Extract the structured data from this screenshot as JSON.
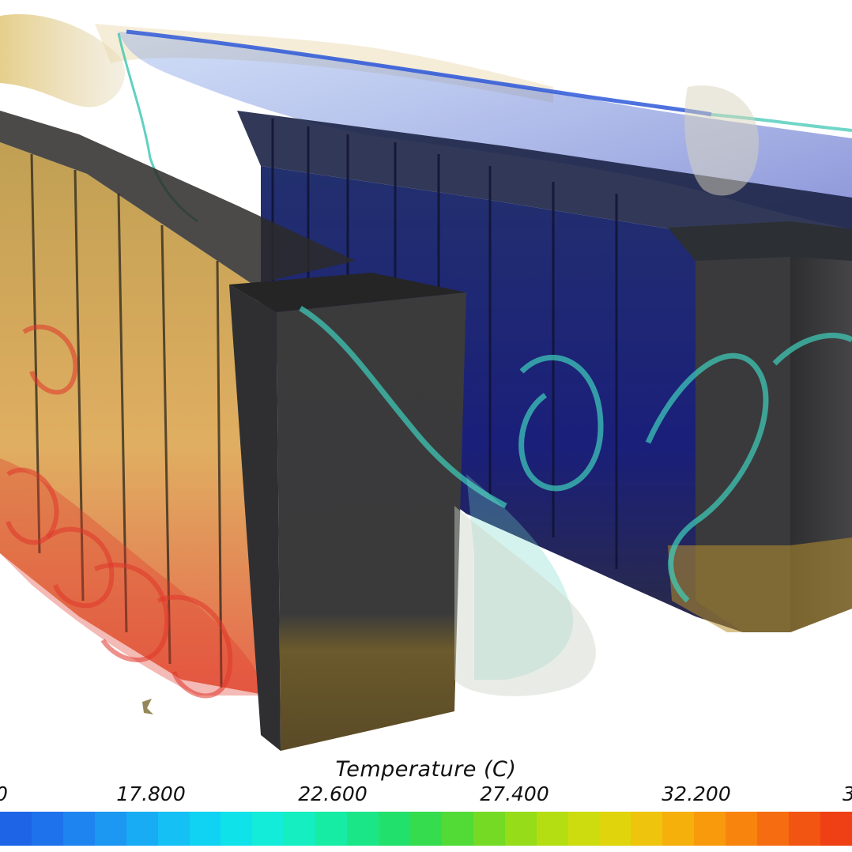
{
  "visualization": {
    "subject": "server-racks-temperature-isosurfaces",
    "colormap_name": "rainbow",
    "isosurface_colors": [
      "#d8b13a",
      "#e04630",
      "#3bc9b5",
      "#3450c9",
      "#cfd5c8"
    ],
    "rack_color": "#3a3a3c"
  },
  "legend": {
    "title": "Temperature (C)",
    "ticks": [
      {
        "label": "0",
        "clip": "partial-left"
      },
      {
        "label": "17.800"
      },
      {
        "label": "22.600"
      },
      {
        "label": "27.400"
      },
      {
        "label": "32.200"
      },
      {
        "label": "3",
        "clip": "partial-right"
      }
    ],
    "colors": [
      "#1e64e6",
      "#1e72ec",
      "#1e84f0",
      "#1c98f2",
      "#18acf4",
      "#14c0f4",
      "#10d2f2",
      "#10e2ea",
      "#12ecd8",
      "#14eec0",
      "#16eca4",
      "#1ae688",
      "#22e06c",
      "#34dc4e",
      "#52da36",
      "#74da24",
      "#96dc18",
      "#b4de12",
      "#ccdc0e",
      "#e0d40c",
      "#eec40c",
      "#f6b00c",
      "#f89a0c",
      "#f8840e",
      "#f66c10",
      "#f25412",
      "#ee4014"
    ]
  }
}
